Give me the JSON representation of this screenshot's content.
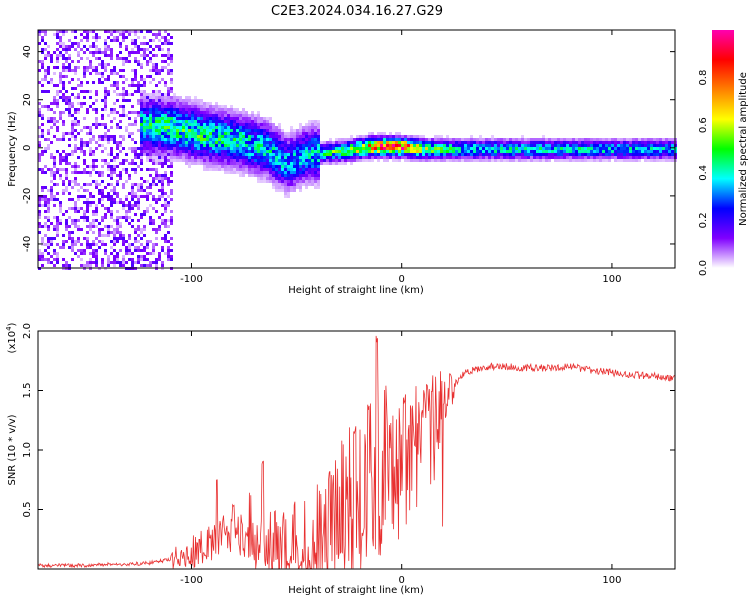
{
  "title": "C2E3.2024.034.16.27.G29",
  "chart_data": [
    {
      "type": "heatmap",
      "xlabel": "Height of straight line (km)",
      "ylabel": "Frequency (Hz)",
      "xlim": [
        -173,
        130
      ],
      "ylim": [
        -50,
        49
      ],
      "x_ticks": [
        -100,
        0,
        100
      ],
      "x_tick_labels": [
        "-100",
        "0",
        "100"
      ],
      "y_ticks": [
        -40,
        -20,
        0,
        20,
        40
      ],
      "y_tick_labels": [
        "-40",
        "-20",
        "0",
        "20",
        "40"
      ],
      "colorbar": {
        "label": "Normalized spectral amplitude",
        "range": [
          0,
          1
        ],
        "ticks": [
          0.0,
          0.2,
          0.4,
          0.6,
          0.8
        ],
        "tick_labels": [
          "0.0",
          "0.2",
          "0.4",
          "0.6",
          "0.8"
        ],
        "colors": [
          "#ffffff",
          "#8000ff",
          "#0000ff",
          "#00ffff",
          "#00ff00",
          "#ffff00",
          "#ff8000",
          "#ff0000",
          "#ff00b0"
        ]
      },
      "ridge": [
        {
          "x": -125,
          "y": 10,
          "amp": 0.4
        },
        {
          "x": -110,
          "y": 9,
          "amp": 0.45
        },
        {
          "x": -95,
          "y": 6,
          "amp": 0.45
        },
        {
          "x": -80,
          "y": 4,
          "amp": 0.4
        },
        {
          "x": -65,
          "y": 0,
          "amp": 0.4
        },
        {
          "x": -55,
          "y": -6,
          "amp": 0.35
        },
        {
          "x": -45,
          "y": -2,
          "amp": 0.35
        },
        {
          "x": -30,
          "y": -1,
          "amp": 0.5
        },
        {
          "x": -15,
          "y": 1,
          "amp": 0.8
        },
        {
          "x": 0,
          "y": 1,
          "amp": 0.85
        },
        {
          "x": 10,
          "y": 0,
          "amp": 0.55
        },
        {
          "x": 25,
          "y": 0,
          "amp": 0.4
        },
        {
          "x": 130,
          "y": 0,
          "amp": 0.35
        }
      ],
      "noise_region_x": [
        -173,
        -110
      ]
    },
    {
      "type": "line",
      "xlabel": "Height of straight line (km)",
      "ylabel": "SNR (10 * v/v)",
      "y_scale_label": "(x10",
      "y_scale_exponent": "4",
      "xlim": [
        -173,
        130
      ],
      "ylim": [
        0,
        2.0
      ],
      "x_ticks": [
        -100,
        0,
        100
      ],
      "x_tick_labels": [
        "-100",
        "0",
        "100"
      ],
      "y_ticks": [
        0.5,
        1.0,
        1.5,
        2.0
      ],
      "y_tick_labels": [
        "0.5",
        "1.0",
        "1.5",
        "2.0"
      ],
      "color": "#e83030",
      "series": [
        {
          "x": [
            -173,
            -160,
            -150,
            -140,
            -130,
            -120,
            -110,
            -100,
            -95,
            -90,
            -85,
            -80,
            -75,
            -70,
            -65,
            -60,
            -55,
            -50,
            -45,
            -40,
            -35,
            -30,
            -25,
            -20,
            -15,
            -10,
            -5,
            0,
            5,
            10,
            15,
            20,
            25,
            30,
            40,
            50,
            60,
            70,
            80,
            90,
            100,
            110,
            120,
            130
          ],
          "y": [
            0.03,
            0.03,
            0.03,
            0.04,
            0.04,
            0.05,
            0.08,
            0.12,
            0.2,
            0.25,
            0.3,
            0.28,
            0.3,
            0.25,
            0.2,
            0.17,
            0.15,
            0.13,
            0.14,
            0.2,
            0.3,
            0.45,
            0.55,
            0.6,
            0.75,
            0.7,
            0.9,
            1.05,
            1.1,
            1.15,
            1.3,
            1.45,
            1.55,
            1.65,
            1.7,
            1.7,
            1.69,
            1.69,
            1.7,
            1.67,
            1.65,
            1.63,
            1.62,
            1.6
          ]
        }
      ],
      "spikes": [
        {
          "x": -88,
          "y": 0.75
        },
        {
          "x": -80,
          "y": 0.55
        },
        {
          "x": -72,
          "y": 0.65
        },
        {
          "x": -66,
          "y": 0.92
        },
        {
          "x": -60,
          "y": 0.5
        },
        {
          "x": -34,
          "y": 0.85
        },
        {
          "x": -28,
          "y": 1.1
        },
        {
          "x": -22,
          "y": 1.2
        },
        {
          "x": -16,
          "y": 1.4
        },
        {
          "x": -12,
          "y": 2.0
        },
        {
          "x": -8,
          "y": 1.55
        },
        {
          "x": 4,
          "y": 1.4
        },
        {
          "x": 12,
          "y": 1.55
        }
      ]
    }
  ]
}
